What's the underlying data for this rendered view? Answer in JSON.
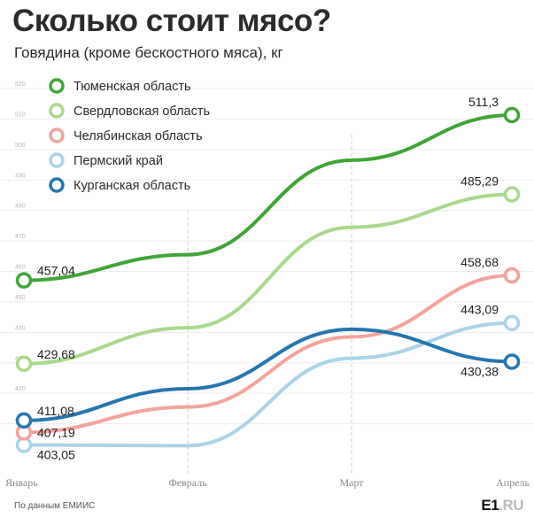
{
  "header": {
    "title": "Сколько стоит мясо?",
    "subtitle": "Говядина (кроме бескостного мяса), кг"
  },
  "footer": {
    "source": "По данным ЕМИИС",
    "logo_main": "E1",
    "logo_suffix": ".RU"
  },
  "chart_data": {
    "type": "line",
    "title": "Сколько стоит мясо?",
    "subtitle": "Говядина (кроме бескостного мяса), кг",
    "categories": [
      "Январь",
      "Февраль",
      "Март",
      "Апрель"
    ],
    "yticks": [
      410,
      420,
      430,
      440,
      450,
      460,
      470,
      480,
      490,
      500,
      510,
      520
    ],
    "ylim": [
      400,
      523
    ],
    "grid": true,
    "legend_position": "top-left",
    "series": [
      {
        "name": "Тюменская область",
        "color": "#3fa535",
        "values": [
          457.04,
          465.5,
          496.5,
          511.3
        ],
        "labels": [
          "457,04",
          "",
          "",
          "511,3"
        ]
      },
      {
        "name": "Свердловская область",
        "color": "#a8d98a",
        "values": [
          429.68,
          441.5,
          474.5,
          485.29
        ],
        "labels": [
          "429,68",
          "",
          "",
          "485,29"
        ]
      },
      {
        "name": "Челябинская область",
        "color": "#f4a39b",
        "values": [
          407.19,
          415.5,
          438.5,
          458.68
        ],
        "labels": [
          "407,19",
          "",
          "",
          "458,68"
        ]
      },
      {
        "name": "Пермский край",
        "color": "#a9d3e8",
        "values": [
          403.05,
          402.8,
          431.5,
          443.09
        ],
        "labels": [
          "403,05",
          "",
          "",
          "443,09"
        ]
      },
      {
        "name": "Курганская область",
        "color": "#2576b0",
        "values": [
          411.08,
          421.5,
          441.0,
          430.38
        ],
        "labels": [
          "411,08",
          "",
          "",
          "430,38"
        ]
      }
    ]
  }
}
